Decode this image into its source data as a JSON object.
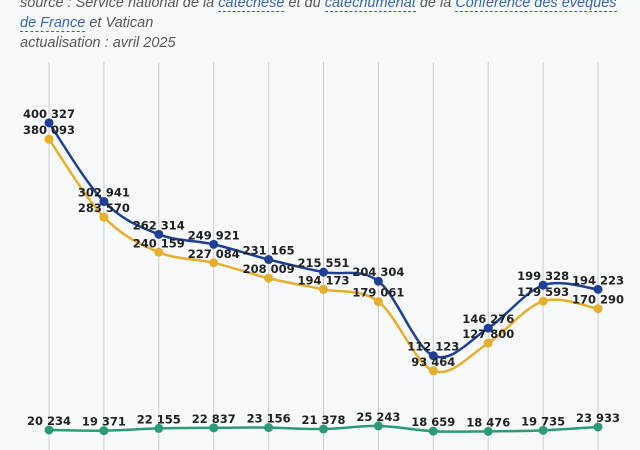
{
  "notes": {
    "source_prefix": "source : Service national de la",
    "link1": "catéchèse",
    "mid1": "et du",
    "link2": "catéchuménat",
    "mid2": "de la",
    "link3": "Conférence des évêques de France",
    "suffix": "et Vatican",
    "update": "actualisation : avril 2025"
  },
  "chart_data": {
    "type": "line",
    "title": "",
    "xlabel": "",
    "ylabel": "",
    "ylim": [
      0,
      410000
    ],
    "grid": "vertical",
    "point_count": 11,
    "series": [
      {
        "name": "series-blue",
        "color": "#1d3f96",
        "values": [
          400327,
          302941,
          262314,
          249921,
          231165,
          215551,
          204304,
          112123,
          146276,
          199328,
          194223
        ],
        "labels": [
          "400 327",
          "302 941",
          "262 314",
          "249 921",
          "231 165",
          "215 551",
          "204 304",
          "112 123",
          "146 276",
          "199 328",
          "194 223"
        ]
      },
      {
        "name": "series-orange",
        "color": "#e6ae2d",
        "values": [
          380093,
          283570,
          240159,
          227084,
          208009,
          194173,
          179061,
          93464,
          127800,
          179593,
          170290
        ],
        "labels": [
          "380 093",
          "283 570",
          "240 159",
          "227 084",
          "208 009",
          "194 173",
          "179 061",
          "93 464",
          "127 800",
          "179 593",
          "170 290"
        ]
      },
      {
        "name": "series-green",
        "color": "#2a9a78",
        "values": [
          20234,
          19371,
          22155,
          22837,
          23156,
          21378,
          25243,
          18659,
          18476,
          19735,
          23933
        ],
        "labels": [
          "20 234",
          "19 371",
          "22 155",
          "22 837",
          "23 156",
          "21 378",
          "25 243",
          "18 659",
          "18 476",
          "19 735",
          "23 933"
        ]
      }
    ]
  }
}
